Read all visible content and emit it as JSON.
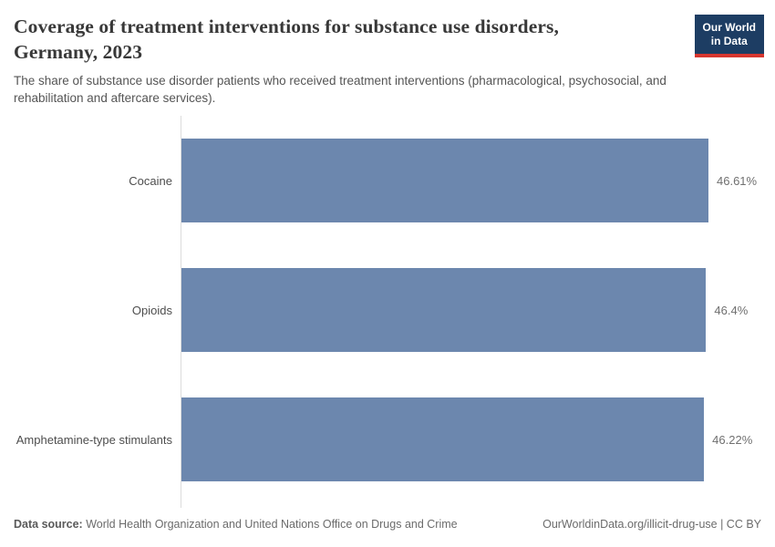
{
  "header": {
    "title": "Coverage of treatment interventions for substance use disorders, Germany, 2023",
    "subtitle": "The share of substance use disorder patients who received treatment interventions (pharmacological, psychosocial, and rehabilitation and aftercare services).",
    "logo": {
      "line1": "Our World",
      "line2": "in Data",
      "bg_color": "#1d3d63",
      "accent_color": "#d7362f"
    }
  },
  "chart_data": {
    "type": "bar",
    "orientation": "horizontal",
    "title": "Coverage of treatment interventions for substance use disorders, Germany, 2023",
    "categories": [
      "Cocaine",
      "Opioids",
      "Amphetamine-type stimulants"
    ],
    "values": [
      46.61,
      46.4,
      46.22
    ],
    "value_labels": [
      "46.61%",
      "46.4%",
      "46.22%"
    ],
    "unit": "%",
    "xlabel": "",
    "ylabel": "",
    "xlim": [
      0,
      46.61
    ],
    "grid": false,
    "legend": false,
    "bar_color": "#6c87ae",
    "axis_line_color": "#dcdcdc"
  },
  "footer": {
    "source_label": "Data source:",
    "source_text": "World Health Organization and United Nations Office on Drugs and Crime",
    "link_text": "OurWorldinData.org/illicit-drug-use | CC BY"
  }
}
